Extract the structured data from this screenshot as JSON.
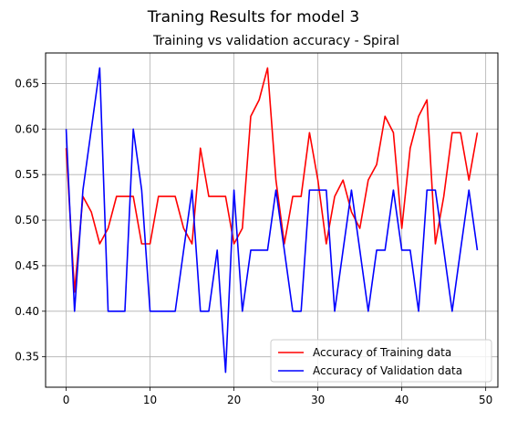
{
  "chart_data": {
    "type": "line",
    "suptitle": "Traning Results for model 3",
    "title": "Training vs validation accuracy - Spiral",
    "xlabel": "",
    "ylabel": "",
    "xlim": [
      -2.45,
      51.45
    ],
    "ylim": [
      0.3166,
      0.6835
    ],
    "xticks": [
      0,
      10,
      20,
      30,
      40,
      50
    ],
    "yticks": [
      0.35,
      0.4,
      0.45,
      0.5,
      0.55,
      0.6,
      0.65
    ],
    "ytick_labels": [
      "0.35",
      "0.40",
      "0.45",
      "0.50",
      "0.55",
      "0.60",
      "0.65"
    ],
    "grid": true,
    "legend_position": "lower-right",
    "x": [
      0,
      1,
      2,
      3,
      4,
      5,
      6,
      7,
      8,
      9,
      10,
      11,
      12,
      13,
      14,
      15,
      16,
      17,
      18,
      19,
      20,
      21,
      22,
      23,
      24,
      25,
      26,
      27,
      28,
      29,
      30,
      31,
      32,
      33,
      34,
      35,
      36,
      37,
      38,
      39,
      40,
      41,
      42,
      43,
      44,
      45,
      46,
      47,
      48,
      49
    ],
    "series": [
      {
        "name": "Accuracy of Training data",
        "color": "#ff0000",
        "values": [
          0.579,
          0.421,
          0.526,
          0.509,
          0.474,
          0.491,
          0.526,
          0.526,
          0.526,
          0.474,
          0.474,
          0.526,
          0.526,
          0.526,
          0.491,
          0.474,
          0.579,
          0.526,
          0.526,
          0.526,
          0.474,
          0.491,
          0.614,
          0.632,
          0.667,
          0.544,
          0.474,
          0.526,
          0.526,
          0.596,
          0.544,
          0.474,
          0.526,
          0.544,
          0.509,
          0.491,
          0.544,
          0.561,
          0.614,
          0.596,
          0.491,
          0.579,
          0.614,
          0.632,
          0.474,
          0.526,
          0.596,
          0.596,
          0.544,
          0.596
        ]
      },
      {
        "name": "Accuracy of Validation data",
        "color": "#0000ff",
        "values": [
          0.6,
          0.4,
          0.533,
          0.6,
          0.667,
          0.4,
          0.4,
          0.4,
          0.6,
          0.533,
          0.4,
          0.4,
          0.4,
          0.4,
          0.467,
          0.533,
          0.4,
          0.4,
          0.467,
          0.333,
          0.533,
          0.4,
          0.467,
          0.467,
          0.467,
          0.533,
          0.467,
          0.4,
          0.4,
          0.533,
          0.533,
          0.533,
          0.4,
          0.467,
          0.533,
          0.467,
          0.4,
          0.467,
          0.467,
          0.533,
          0.467,
          0.467,
          0.4,
          0.533,
          0.533,
          0.467,
          0.4,
          0.467,
          0.533,
          0.467
        ]
      }
    ]
  }
}
